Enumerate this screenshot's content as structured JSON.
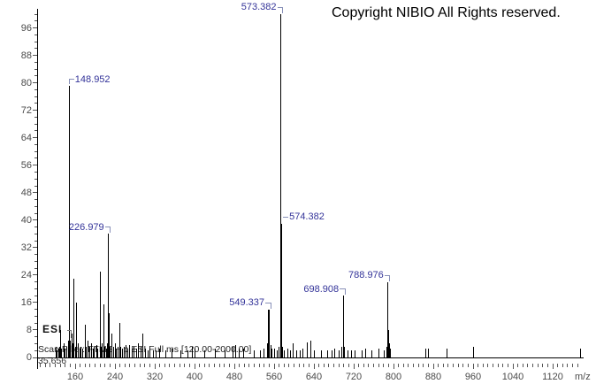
{
  "copyright": "Copyright NIBIO All Rights reserved.",
  "annotations": {
    "esi": "ESI",
    "scan_filter": "Scan Filter: FTMS + p ESI Full ms [120.00-2000.00]",
    "bottom_left_number": "35.656"
  },
  "colors": {
    "peak": "#000000",
    "peak_label": "#333399",
    "bracket": "#8890b8",
    "axis_text": "#4a4a4a",
    "axis_line": "#000000",
    "tick": "#555555"
  },
  "chart_data": {
    "type": "bar",
    "subtype": "mass-spectrum-stick-plot",
    "title": "",
    "xlabel": "m/z",
    "ylabel": "",
    "xlim": [
      90,
      1180
    ],
    "ylim": [
      0,
      100
    ],
    "grid": false,
    "x_major_ticks": [
      160,
      240,
      320,
      400,
      480,
      560,
      640,
      720,
      800,
      880,
      960,
      1040,
      1120
    ],
    "x_minor_step": 10,
    "y_major_ticks": [
      0,
      8,
      16,
      24,
      32,
      40,
      48,
      56,
      64,
      72,
      80,
      88,
      96
    ],
    "y_minor_step": 2,
    "labeled_peaks": [
      {
        "mz": 148.952,
        "intensity": 79,
        "label": "148.952",
        "bracket": "left-elbow"
      },
      {
        "mz": 226.979,
        "intensity": 36,
        "label": "226.979",
        "bracket": "right-elbow"
      },
      {
        "mz": 549.337,
        "intensity": 14,
        "label": "549.337",
        "bracket": "right-elbow"
      },
      {
        "mz": 573.382,
        "intensity": 100,
        "label": "573.382",
        "bracket": "right-elbow",
        "label_top": 2
      },
      {
        "mz": 574.382,
        "intensity": 39,
        "label": "574.382",
        "bracket": "left-dash"
      },
      {
        "mz": 698.908,
        "intensity": 18,
        "label": "698.908",
        "bracket": "right-elbow"
      },
      {
        "mz": 788.976,
        "intensity": 22,
        "label": "788.976",
        "bracket": "right-elbow"
      }
    ],
    "peaks": [
      [
        121.5,
        3
      ],
      [
        124,
        2
      ],
      [
        126.5,
        2.5
      ],
      [
        128,
        3
      ],
      [
        130,
        8
      ],
      [
        131.5,
        3
      ],
      [
        133,
        2.5
      ],
      [
        137,
        4
      ],
      [
        140,
        2.5
      ],
      [
        143,
        3
      ],
      [
        146,
        5
      ],
      [
        151,
        5
      ],
      [
        153,
        7
      ],
      [
        155,
        4
      ],
      [
        157,
        23
      ],
      [
        160,
        3
      ],
      [
        163,
        16
      ],
      [
        166,
        4
      ],
      [
        169,
        2.5
      ],
      [
        172,
        3
      ],
      [
        175,
        2.5
      ],
      [
        180,
        9.5
      ],
      [
        183,
        3
      ],
      [
        186,
        5
      ],
      [
        189,
        3
      ],
      [
        192.5,
        4
      ],
      [
        196,
        2.5
      ],
      [
        199,
        3
      ],
      [
        203,
        3.5
      ],
      [
        206,
        2.5
      ],
      [
        210,
        25
      ],
      [
        213,
        3
      ],
      [
        215,
        4
      ],
      [
        217,
        15.5
      ],
      [
        220,
        3
      ],
      [
        223,
        2.5
      ],
      [
        225,
        4
      ],
      [
        228,
        13
      ],
      [
        231,
        3
      ],
      [
        234,
        7
      ],
      [
        237,
        3
      ],
      [
        240,
        4
      ],
      [
        243,
        2.5
      ],
      [
        246,
        3
      ],
      [
        249,
        10
      ],
      [
        252,
        3
      ],
      [
        255,
        2.5
      ],
      [
        258,
        3
      ],
      [
        262,
        3.5
      ],
      [
        266,
        2.5
      ],
      [
        270,
        3.5
      ],
      [
        274,
        2.5
      ],
      [
        278,
        3
      ],
      [
        283,
        2.5
      ],
      [
        287,
        4
      ],
      [
        292,
        3
      ],
      [
        296,
        7
      ],
      [
        301,
        2.5
      ],
      [
        306,
        2
      ],
      [
        311,
        2.5
      ],
      [
        317,
        2
      ],
      [
        323,
        2
      ],
      [
        329,
        2.5
      ],
      [
        343,
        2
      ],
      [
        355,
        2.5
      ],
      [
        373,
        2
      ],
      [
        386,
        2
      ],
      [
        395,
        3
      ],
      [
        400,
        2.5
      ],
      [
        420,
        2
      ],
      [
        441,
        2.5
      ],
      [
        462,
        2
      ],
      [
        477,
        3
      ],
      [
        482,
        3.5
      ],
      [
        489,
        2.5
      ],
      [
        498,
        2.5
      ],
      [
        520,
        2
      ],
      [
        533,
        2
      ],
      [
        540,
        2.5
      ],
      [
        547,
        4
      ],
      [
        551,
        6
      ],
      [
        553,
        3.5
      ],
      [
        556,
        2.5
      ],
      [
        561,
        2.5
      ],
      [
        566,
        2
      ],
      [
        570,
        3
      ],
      [
        575.5,
        5
      ],
      [
        577,
        3
      ],
      [
        581,
        2
      ],
      [
        587,
        2.5
      ],
      [
        592,
        2
      ],
      [
        599,
        4
      ],
      [
        605,
        2
      ],
      [
        612,
        2
      ],
      [
        618,
        2.5
      ],
      [
        627,
        4.5
      ],
      [
        634,
        5
      ],
      [
        641,
        2
      ],
      [
        655,
        2
      ],
      [
        668,
        2
      ],
      [
        676,
        2
      ],
      [
        682,
        2.5
      ],
      [
        690,
        2
      ],
      [
        696,
        3
      ],
      [
        700,
        6
      ],
      [
        701.5,
        3
      ],
      [
        708,
        2
      ],
      [
        715,
        2
      ],
      [
        722,
        2
      ],
      [
        737,
        2
      ],
      [
        744,
        2.5
      ],
      [
        757,
        2
      ],
      [
        770,
        2.5
      ],
      [
        781,
        2
      ],
      [
        787,
        3
      ],
      [
        790,
        8
      ],
      [
        791.5,
        4
      ],
      [
        793,
        2.5
      ],
      [
        865,
        2.5
      ],
      [
        871,
        2.5
      ],
      [
        908,
        2.5
      ],
      [
        960,
        3
      ],
      [
        1176,
        2.5
      ]
    ]
  }
}
